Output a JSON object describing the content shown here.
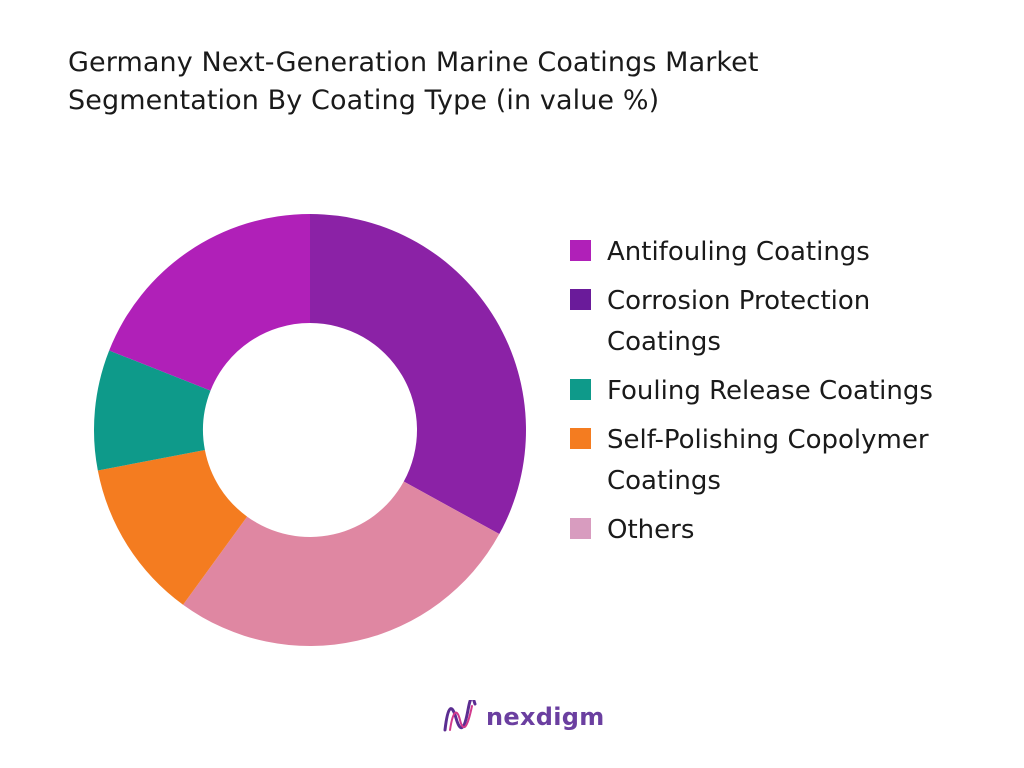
{
  "title": {
    "line1": "Germany Next-Generation Marine Coatings Market",
    "line2": "Segmentation By Coating Type (in value %)"
  },
  "chart_data": {
    "type": "pie",
    "donut": true,
    "title": "Germany Next-Generation Marine Coatings Market Segmentation By Coating Type (in value %)",
    "categories": [
      "Antifouling Coatings",
      "Corrosion Protection Coatings",
      "Fouling Release Coatings",
      "Self-Polishing Copolymer Coatings",
      "Others"
    ],
    "values": [
      19,
      33,
      9,
      12,
      27
    ],
    "slice_order": [
      1,
      4,
      3,
      2,
      0
    ],
    "colors": [
      "#b020b8",
      "#8b22a6",
      "#0e9a8a",
      "#f47c20",
      "#df87a2"
    ],
    "legend_colors": [
      "#b020b8",
      "#6a1b9a",
      "#0e9a8a",
      "#f47c20",
      "#d89cbf"
    ],
    "legend_position": "right"
  },
  "logo": {
    "text": "nexdigm"
  }
}
